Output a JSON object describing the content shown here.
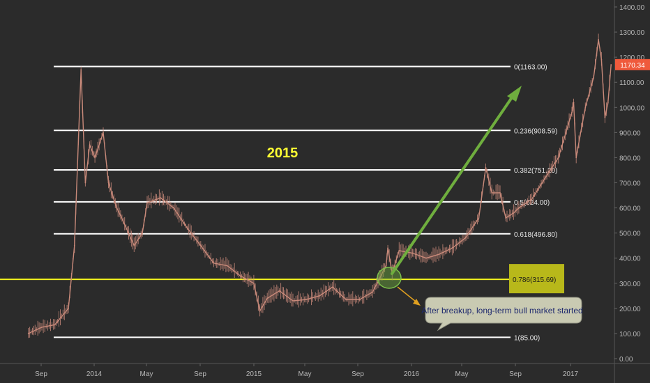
{
  "colors": {
    "background": "#2b2b2b",
    "price_line": "#c98a7a",
    "fib_line": "#ffffff",
    "key_level": "#f2f21e",
    "key_level_box": "#b8b81a",
    "arrow": "#6fae3e",
    "callout_arrow": "#e0a020",
    "callout_fill": "#c9cab2",
    "callout_text": "#1f2a6e",
    "last_price_badge": "#ef5a3c",
    "year_label": "#ffff33"
  },
  "chart_data": {
    "type": "line",
    "title": "2015",
    "xlabel": "",
    "ylabel": "",
    "ylim": [
      0,
      1400
    ],
    "grid": false,
    "x_tick_labels": [
      "Sep",
      "2014",
      "May",
      "Sep",
      "2015",
      "May",
      "Sep",
      "2016",
      "May",
      "Sep",
      "2017"
    ],
    "y_tick_labels": [
      "1400.00",
      "1300.00",
      "1200.00",
      "1100.00",
      "1000.00",
      "900.00",
      "800.00",
      "700.00",
      "600.00",
      "500.00",
      "400.00",
      "300.00",
      "200.00",
      "100.00",
      "0.00"
    ],
    "y_tick_values": [
      1400,
      1300,
      1200,
      1100,
      1000,
      900,
      800,
      700,
      600,
      500,
      400,
      300,
      200,
      100,
      0
    ],
    "last_price": {
      "value": 1170.34,
      "label": "1170.34"
    },
    "fib_levels": [
      {
        "ratio": "0",
        "value": 1163.0,
        "label": "0(1163.00)"
      },
      {
        "ratio": "0.236",
        "value": 908.59,
        "label": "0.236(908.59)"
      },
      {
        "ratio": "0.382",
        "value": 751.2,
        "label": "0.382(751.20)"
      },
      {
        "ratio": "0.5",
        "value": 624.0,
        "label": "0.5(624.00)"
      },
      {
        "ratio": "0.618",
        "value": 496.8,
        "label": "0.618(496.80)"
      },
      {
        "ratio": "0.786",
        "value": 315.69,
        "label": "0.786(315.69)",
        "highlight": true
      },
      {
        "ratio": "1",
        "value": 85.0,
        "label": "1(85.00)"
      }
    ],
    "annotation": "After breakup, long-term bull market started",
    "series": [
      {
        "x": [
          "2013-08",
          "2013-09",
          "2013-10",
          "2013-11-01",
          "2013-11-15",
          "2013-11-30",
          "2013-12-10",
          "2013-12-20",
          "2014-01",
          "2014-01-20",
          "2014-02",
          "2014-02-20",
          "2014-03",
          "2014-04",
          "2014-04-20",
          "2014-05",
          "2014-06",
          "2014-07",
          "2014-08",
          "2014-09",
          "2014-10",
          "2014-11",
          "2014-12",
          "2015-01-01",
          "2015-01-15",
          "2015-02",
          "2015-03",
          "2015-04",
          "2015-05",
          "2015-06",
          "2015-07",
          "2015-08",
          "2015-09",
          "2015-10",
          "2015-11-01",
          "2015-11-05",
          "2015-11-15",
          "2015-12",
          "2016-01",
          "2016-02",
          "2016-03",
          "2016-04",
          "2016-05",
          "2016-06-01",
          "2016-06-17",
          "2016-07",
          "2016-07-20",
          "2016-08-02",
          "2016-08-20",
          "2016-09",
          "2016-10",
          "2016-11",
          "2016-12",
          "2017-01-01",
          "2017-01-05",
          "2017-01-11",
          "2017-01-20",
          "2017-02",
          "2017-02-20",
          "2017-03-03",
          "2017-03-10",
          "2017-03-18",
          "2017-03-25",
          "2017-04"
        ],
        "values": [
          100,
          125,
          135,
          200,
          450,
          1150,
          700,
          850,
          800,
          900,
          700,
          600,
          570,
          450,
          500,
          620,
          640,
          600,
          520,
          450,
          380,
          370,
          330,
          300,
          190,
          240,
          270,
          230,
          235,
          250,
          285,
          235,
          235,
          265,
          370,
          440,
          340,
          430,
          420,
          400,
          415,
          440,
          480,
          560,
          760,
          660,
          660,
          560,
          580,
          600,
          635,
          720,
          800,
          980,
          1020,
          800,
          890,
          1000,
          1120,
          1270,
          1190,
          960,
          1020,
          1170
        ]
      }
    ]
  }
}
